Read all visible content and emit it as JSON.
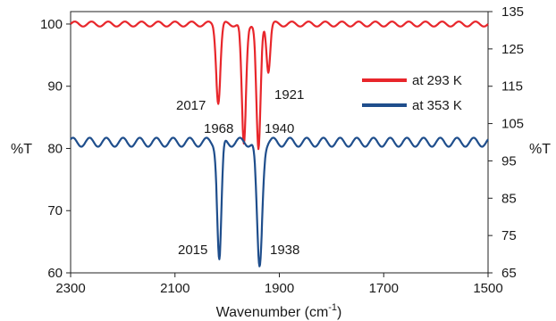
{
  "chart_data": {
    "type": "line",
    "x_axis": {
      "label_main": "Wavenumber (cm",
      "label_sup": "-1",
      "label_tail": ")",
      "range": [
        2300,
        1500
      ],
      "ticks": [
        2300,
        2100,
        1900,
        1700,
        1500
      ]
    },
    "y_left": {
      "label": "%T",
      "range": [
        60,
        102
      ],
      "ticks": [
        60,
        70,
        80,
        90,
        100
      ]
    },
    "y_right": {
      "label": "%T",
      "range": [
        65,
        135
      ],
      "ticks": [
        65,
        75,
        85,
        95,
        105,
        115,
        125,
        135
      ]
    },
    "series": [
      {
        "name": "at 293 K",
        "axis": "left",
        "color": "#e8262b",
        "baseline": 100,
        "ripple": 0.4,
        "bands": [
          {
            "center": 2017,
            "depth": 12.5,
            "width": 4
          },
          {
            "center": 1968,
            "depth": 19.5,
            "width": 4
          },
          {
            "center": 1940,
            "depth": 20.5,
            "width": 4
          },
          {
            "center": 1921,
            "depth": 7.5,
            "width": 3.5
          }
        ]
      },
      {
        "name": "at 353 K",
        "axis": "right",
        "color": "#1f4e8c",
        "baseline": 100,
        "ripple": 1.2,
        "bands": [
          {
            "center": 2015,
            "depth": 31.5,
            "width": 4
          },
          {
            "center": 1938,
            "depth": 33.8,
            "width": 5
          }
        ]
      }
    ],
    "annotations": [
      {
        "text": "2017"
      },
      {
        "text": "1968"
      },
      {
        "text": "1940"
      },
      {
        "text": "1921"
      },
      {
        "text": "2015"
      },
      {
        "text": "1938"
      }
    ],
    "legend": {
      "position": "right"
    }
  }
}
